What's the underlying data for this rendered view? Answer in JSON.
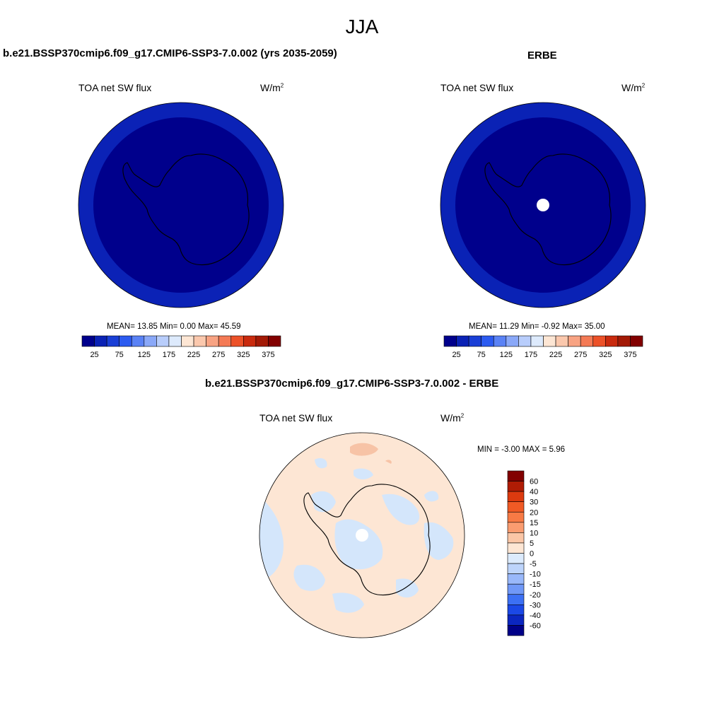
{
  "title": "JJA",
  "colors": {
    "deep_navy": "#00008c",
    "ocean_blue": "#0b22b6",
    "ocean_blue_right": "#0a22b5",
    "diff_positive": "#fde6d4",
    "diff_negative": "#d4e6fb",
    "diff_hot": "#f7c3a6",
    "missing": "#ffffff"
  },
  "panels": {
    "left": {
      "title": "b.e21.BSSP370cmip6.f09_g17.CMIP6-SSP3-7.0.002 (yrs 2035-2059)",
      "variable": "TOA net SW flux",
      "units": "W/m",
      "units_sup": "2",
      "stats": "MEAN=  13.85  Min=   0.00  Max=  45.59"
    },
    "right": {
      "title": "ERBE",
      "variable": "TOA net SW flux",
      "units": "W/m",
      "units_sup": "2",
      "stats": "MEAN=  11.29  Min=  -0.92  Max=  35.00"
    },
    "diff": {
      "title": "b.e21.BSSP370cmip6.f09_g17.CMIP6-SSP3-7.0.002 - ERBE",
      "variable": "TOA net SW flux",
      "units": "W/m",
      "units_sup": "2",
      "stats": "MIN =  -3.00 MAX =   5.96"
    }
  },
  "colorbar_main": {
    "colors": [
      "#00008c",
      "#0a22b5",
      "#1a3fd6",
      "#2c5bf0",
      "#5a82f5",
      "#8aa8f8",
      "#b8cdfb",
      "#ddeafc",
      "#fde6d4",
      "#fbc8ad",
      "#f8a383",
      "#f47a55",
      "#ec5128",
      "#c92a0e",
      "#a31a06",
      "#820000"
    ],
    "labels": [
      "25",
      "75",
      "125",
      "175",
      "225",
      "275",
      "325",
      "375"
    ]
  },
  "colorbar_diff": {
    "colors": [
      "#820000",
      "#b01c05",
      "#dc3a0f",
      "#f05a25",
      "#f77a45",
      "#fa9c70",
      "#fbc6a6",
      "#fde6d4",
      "#dcebfd",
      "#bdd4fb",
      "#99b8fa",
      "#7098f7",
      "#3c70f4",
      "#1b48e6",
      "#0b26c0",
      "#000088"
    ],
    "labels": [
      "60",
      "40",
      "30",
      "20",
      "15",
      "10",
      "5",
      "0",
      "-5",
      "-10",
      "-15",
      "-20",
      "-30",
      "-40",
      "-60"
    ]
  }
}
